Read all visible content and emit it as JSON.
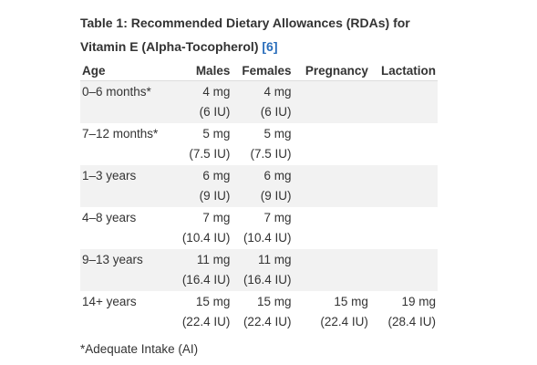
{
  "title": "Table 1: Recommended Dietary Allowances (RDAs) for Vitamin E (Alpha-Tocopherol)",
  "reference": "[6]",
  "table": {
    "header": [
      "Age",
      "Males",
      "Females",
      "Pregnancy",
      "Lactation"
    ],
    "rows": [
      [
        "0–6 months*",
        [
          "4 mg",
          "(6 IU)"
        ],
        [
          "4 mg",
          "(6 IU)"
        ]
      ],
      [
        "7–12 months*",
        [
          "5 mg",
          "(7.5 IU)"
        ],
        [
          "5 mg",
          "(7.5 IU)"
        ]
      ],
      [
        "1–3 years",
        [
          "6 mg",
          "(9 IU)"
        ],
        [
          "6 mg",
          "(9 IU)"
        ]
      ],
      [
        "4–8 years",
        [
          "7 mg",
          "(10.4 IU)"
        ],
        [
          "7 mg",
          "(10.4 IU)"
        ]
      ],
      [
        "9–13 years",
        [
          "11 mg",
          "(16.4 IU)"
        ],
        [
          "11 mg",
          "(16.4 IU)"
        ]
      ],
      [
        "14+ years",
        [
          "15 mg",
          "(22.4 IU)"
        ],
        [
          "15 mg",
          "(22.4 IU)"
        ],
        [
          "15 mg",
          "(22.4 IU)"
        ],
        [
          "19 mg",
          "(28.4 IU)"
        ]
      ]
    ]
  },
  "footnote": "*Adequate Intake (AI)"
}
